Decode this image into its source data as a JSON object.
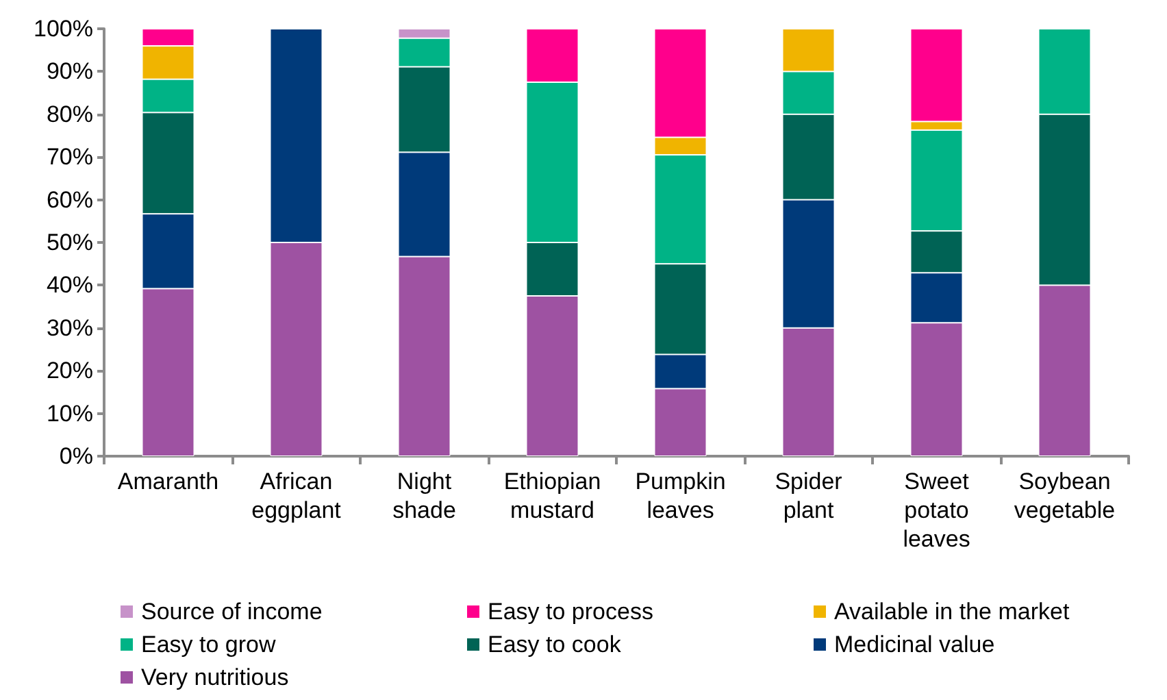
{
  "chart_data": {
    "type": "bar",
    "stacked": true,
    "categories": [
      "Amaranth",
      "African\neggplant",
      "Night\nshade",
      "Ethiopian\nmustard",
      "Pumpkin\nleaves",
      "Spider\nplant",
      "Sweet\npotato\nleaves",
      "Soybean\nvegetable"
    ],
    "series": [
      {
        "name": "Very nutritious",
        "color": "#9e52a2",
        "values": [
          39.2,
          50,
          46.7,
          37.5,
          15.8,
          30,
          31.2,
          40
        ]
      },
      {
        "name": "Medicinal value",
        "color": "#003a7a",
        "values": [
          17.5,
          50,
          24.4,
          null,
          8.0,
          30,
          11.7,
          null
        ]
      },
      {
        "name": "Easy to cook",
        "color": "#006355",
        "values": [
          23.7,
          null,
          20,
          12.5,
          21.2,
          20,
          9.8,
          40
        ]
      },
      {
        "name": "Easy to grow",
        "color": "#00b386",
        "values": [
          7.8,
          null,
          6.7,
          37.5,
          25.5,
          10,
          23.6,
          20
        ]
      },
      {
        "name": "Available in the market",
        "color": "#f0b400",
        "values": [
          7.8,
          null,
          null,
          null,
          4.1,
          10,
          2,
          null
        ]
      },
      {
        "name": "Easy to process",
        "color": "#ff008c",
        "values": [
          4,
          null,
          null,
          12.5,
          25.4,
          null,
          21.7,
          null
        ]
      },
      {
        "name": "Source of income",
        "color": "#c792c9",
        "values": [
          null,
          null,
          2.2,
          null,
          null,
          null,
          null,
          null
        ]
      }
    ],
    "ylim": [
      0,
      100
    ],
    "yticks": [
      {
        "value": 0,
        "label": "0%"
      },
      {
        "value": 10,
        "label": "10%"
      },
      {
        "value": 20,
        "label": "20%"
      },
      {
        "value": 30,
        "label": "30%"
      },
      {
        "value": 40,
        "label": "40%"
      },
      {
        "value": 50,
        "label": "50%"
      },
      {
        "value": 60,
        "label": "60%"
      },
      {
        "value": 70,
        "label": "70%"
      },
      {
        "value": 80,
        "label": "80%"
      },
      {
        "value": 90,
        "label": "90%"
      },
      {
        "value": 100,
        "label": "100%"
      }
    ],
    "grid": false,
    "legend": "bottom"
  }
}
